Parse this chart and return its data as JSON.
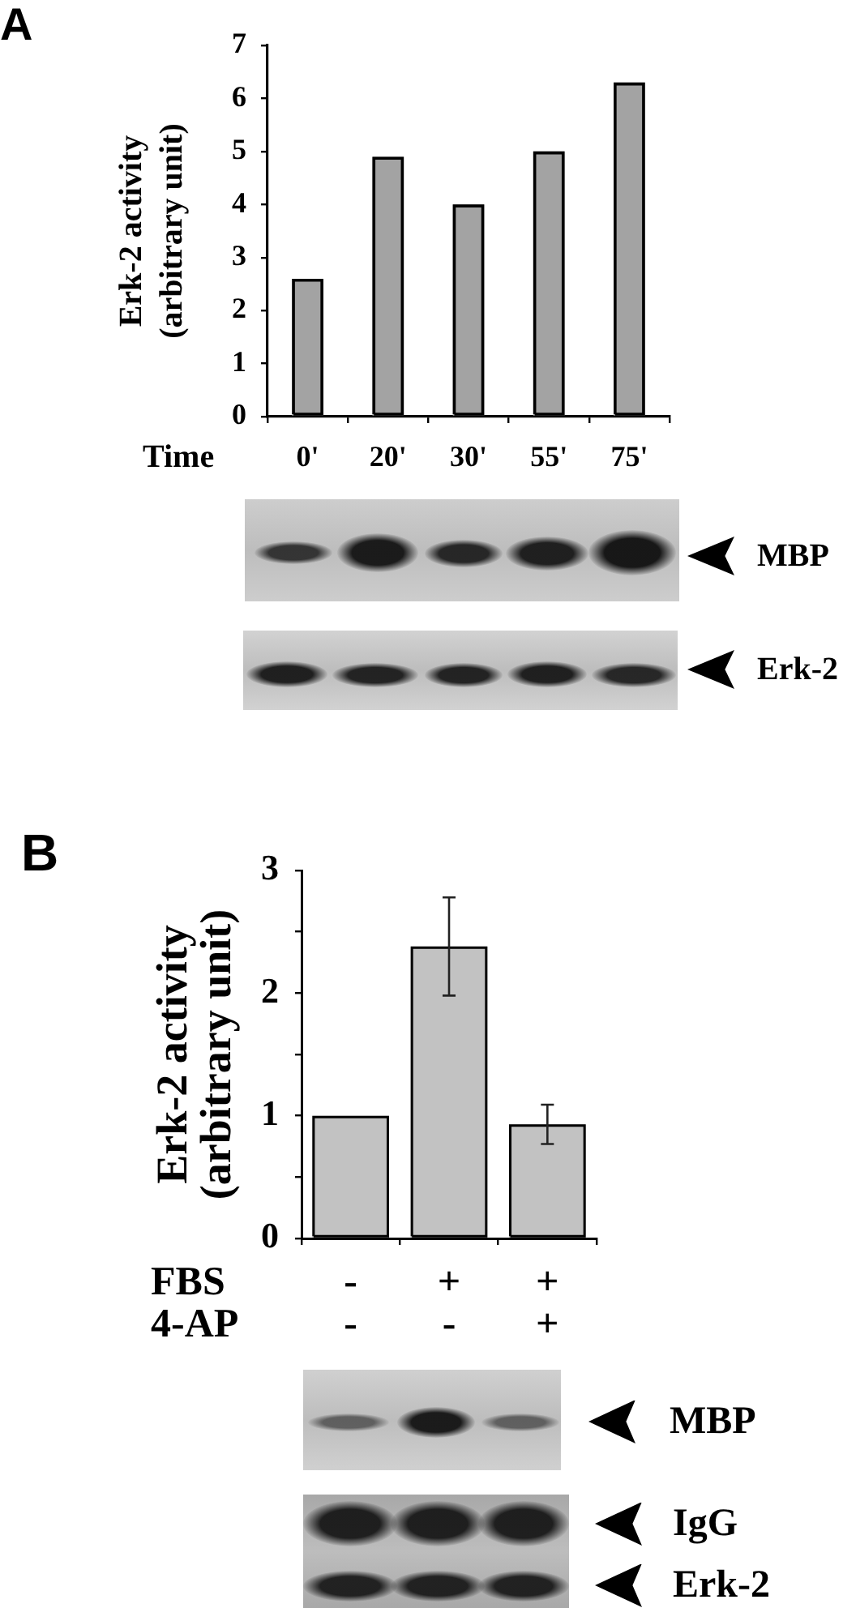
{
  "chart_data": [
    {
      "type": "bar",
      "title": "A",
      "xlabel": "Time",
      "ylabel": "Erk-2 activity\n(arbitrary unit)",
      "categories": [
        "0'",
        "20'",
        "30'",
        "55'",
        "75'"
      ],
      "values": [
        2.6,
        4.9,
        4.0,
        5.0,
        6.3
      ],
      "color": "#a3a3a3",
      "ylim": [
        0,
        7
      ],
      "yticks": [
        0,
        1,
        2,
        3,
        4,
        5,
        6,
        7
      ],
      "annotations": [
        "MBP",
        "Erk-2"
      ]
    },
    {
      "type": "bar",
      "title": "B",
      "xlabel": "FBS\n4-AP",
      "ylabel": "Erk-2 activity\n(arbitrary unit)",
      "categories": [
        "-\n-",
        "+\n-",
        "+\n+"
      ],
      "values": [
        1.0,
        2.38,
        0.93
      ],
      "errors": [
        null,
        0.4,
        0.16
      ],
      "color": "#c2c2c2",
      "ylim": [
        0,
        3
      ],
      "yticks": [
        0,
        {
          "value": 0.5,
          "label": null
        },
        1,
        {
          "value": 1.5,
          "label": null
        },
        2,
        {
          "value": 2.5,
          "label": null
        },
        3
      ],
      "annotations": [
        "MBP",
        "IgG",
        "Erk-2"
      ]
    }
  ]
}
